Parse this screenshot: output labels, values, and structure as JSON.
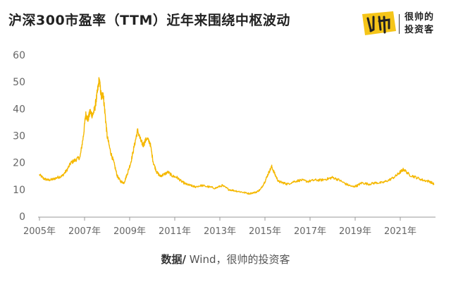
{
  "header": {
    "title": "沪深300市盈率（TTM）近年来围绕中枢波动"
  },
  "brand": {
    "line1": "很帅的",
    "line2": "投资客",
    "logo_color": "#f5c518"
  },
  "source": {
    "label": "数据/",
    "text": " Wind，很帅的投资客"
  },
  "chart_data": {
    "type": "line",
    "title": "沪深300市盈率（TTM）近年来围绕中枢波动",
    "xlabel": "",
    "ylabel": "",
    "ylim": [
      0,
      60
    ],
    "yticks": [
      "0",
      "10",
      "20",
      "30",
      "40",
      "50",
      "60"
    ],
    "xlim": [
      2005,
      2022.5
    ],
    "xticks": [
      {
        "year": 2005,
        "label": "2005年"
      },
      {
        "year": 2007,
        "label": "2007年"
      },
      {
        "year": 2009,
        "label": "2009年"
      },
      {
        "year": 2011,
        "label": "2011年"
      },
      {
        "year": 2013,
        "label": "2013年"
      },
      {
        "year": 2015,
        "label": "2015年"
      },
      {
        "year": 2017,
        "label": "2017年"
      },
      {
        "year": 2019,
        "label": "2019年"
      },
      {
        "year": 2021,
        "label": "2021年"
      }
    ],
    "grid": false,
    "line_color": "#f5b800",
    "series": [
      {
        "name": "",
        "x": [
          2005.0,
          2005.2,
          2005.4,
          2005.6,
          2005.8,
          2006.0,
          2006.2,
          2006.4,
          2006.6,
          2006.8,
          2006.95,
          2007.05,
          2007.15,
          2007.25,
          2007.35,
          2007.45,
          2007.55,
          2007.65,
          2007.75,
          2007.82,
          2007.9,
          2008.0,
          2008.15,
          2008.3,
          2008.45,
          2008.6,
          2008.75,
          2008.9,
          2009.05,
          2009.2,
          2009.35,
          2009.5,
          2009.6,
          2009.75,
          2009.9,
          2010.05,
          2010.2,
          2010.35,
          2010.5,
          2010.7,
          2010.9,
          2011.1,
          2011.3,
          2011.5,
          2011.7,
          2011.9,
          2012.2,
          2012.5,
          2012.8,
          2013.1,
          2013.4,
          2013.7,
          2014.0,
          2014.3,
          2014.6,
          2014.8,
          2015.0,
          2015.15,
          2015.3,
          2015.45,
          2015.6,
          2015.8,
          2016.0,
          2016.3,
          2016.6,
          2016.9,
          2017.2,
          2017.5,
          2017.8,
          2018.0,
          2018.3,
          2018.6,
          2018.9,
          2019.1,
          2019.3,
          2019.6,
          2019.9,
          2020.2,
          2020.5,
          2020.8,
          2021.0,
          2021.15,
          2021.4,
          2021.7,
          2022.0,
          2022.3,
          2022.5
        ],
        "y": [
          15.5,
          14.0,
          13.5,
          13.8,
          14.5,
          15.0,
          17.0,
          20.0,
          21.0,
          22.0,
          30.0,
          38.0,
          36.0,
          39.0,
          37.5,
          40.0,
          45.0,
          51.0,
          44.0,
          46.0,
          39.0,
          30.0,
          24.0,
          20.0,
          15.0,
          13.0,
          12.5,
          16.0,
          20.0,
          26.0,
          32.0,
          28.0,
          26.5,
          29.0,
          27.5,
          20.0,
          16.5,
          15.0,
          15.5,
          16.5,
          15.0,
          14.5,
          13.0,
          12.0,
          11.5,
          11.0,
          11.5,
          11.0,
          10.5,
          11.5,
          10.0,
          9.5,
          9.0,
          8.5,
          9.0,
          10.0,
          13.0,
          16.0,
          18.5,
          15.5,
          13.0,
          12.5,
          12.0,
          13.0,
          13.5,
          13.0,
          13.5,
          13.5,
          14.0,
          14.5,
          13.5,
          12.0,
          11.0,
          11.5,
          12.5,
          12.0,
          12.5,
          12.5,
          13.5,
          15.0,
          16.5,
          17.5,
          15.5,
          14.5,
          13.5,
          13.0,
          12.0
        ]
      }
    ]
  }
}
